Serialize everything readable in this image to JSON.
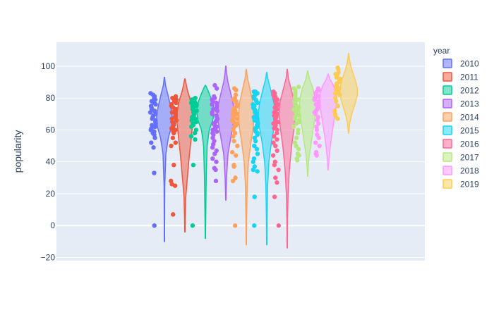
{
  "chart_data": {
    "type": "violin",
    "title": "",
    "xlabel": "",
    "ylabel": "popularity",
    "ylim": [
      -22,
      115
    ],
    "yticks": [
      -20,
      0,
      20,
      40,
      60,
      80,
      100
    ],
    "grid": true,
    "show_points": true,
    "legend": {
      "title": "year",
      "placement": "right"
    },
    "series": [
      {
        "name": "2010",
        "color": "#636efa",
        "range": [
          -10,
          93
        ],
        "density": [
          [
            -10,
            0.01
          ],
          [
            0,
            0.01
          ],
          [
            25,
            0.02
          ],
          [
            45,
            0.08
          ],
          [
            55,
            0.22
          ],
          [
            62,
            0.4
          ],
          [
            68,
            0.45
          ],
          [
            75,
            0.35
          ],
          [
            82,
            0.2
          ],
          [
            88,
            0.06
          ],
          [
            93,
            0.01
          ]
        ],
        "points": [
          83,
          82,
          81,
          80,
          79,
          78,
          78,
          77,
          76,
          75,
          74,
          73,
          72,
          71,
          70,
          69,
          68,
          67,
          66,
          65,
          64,
          63,
          62,
          61,
          60,
          59,
          58,
          57,
          55,
          52,
          49,
          33,
          0
        ]
      },
      {
        "name": "2011",
        "color": "#EF553B",
        "range": [
          -4,
          92
        ],
        "density": [
          [
            -4,
            0.01
          ],
          [
            5,
            0.02
          ],
          [
            18,
            0.05
          ],
          [
            30,
            0.14
          ],
          [
            45,
            0.26
          ],
          [
            55,
            0.36
          ],
          [
            65,
            0.45
          ],
          [
            72,
            0.43
          ],
          [
            78,
            0.33
          ],
          [
            85,
            0.14
          ],
          [
            92,
            0.01
          ]
        ],
        "points": [
          81,
          80,
          79,
          78,
          77,
          76,
          75,
          74,
          73,
          72,
          71,
          70,
          69,
          68,
          67,
          66,
          65,
          64,
          63,
          62,
          61,
          60,
          59,
          58,
          55,
          52,
          50,
          38,
          28,
          26,
          25,
          7
        ]
      },
      {
        "name": "2012",
        "color": "#00cc96",
        "range": [
          -8,
          88
        ],
        "density": [
          [
            -8,
            0.01
          ],
          [
            5,
            0.02
          ],
          [
            30,
            0.05
          ],
          [
            50,
            0.1
          ],
          [
            60,
            0.22
          ],
          [
            66,
            0.42
          ],
          [
            72,
            0.5
          ],
          [
            77,
            0.42
          ],
          [
            82,
            0.25
          ],
          [
            86,
            0.1
          ],
          [
            88,
            0.01
          ]
        ],
        "points": [
          80,
          79,
          79,
          78,
          77,
          77,
          76,
          75,
          75,
          74,
          73,
          73,
          72,
          71,
          70,
          69,
          68,
          67,
          66,
          65,
          64,
          63,
          62,
          60,
          58,
          56,
          54,
          38,
          0
        ]
      },
      {
        "name": "2013",
        "color": "#ab63fa",
        "range": [
          16,
          100
        ],
        "density": [
          [
            16,
            0.01
          ],
          [
            30,
            0.04
          ],
          [
            45,
            0.12
          ],
          [
            55,
            0.28
          ],
          [
            64,
            0.42
          ],
          [
            70,
            0.48
          ],
          [
            76,
            0.42
          ],
          [
            82,
            0.3
          ],
          [
            90,
            0.12
          ],
          [
            96,
            0.04
          ],
          [
            100,
            0.01
          ]
        ],
        "points": [
          88,
          86,
          81,
          80,
          79,
          78,
          77,
          76,
          75,
          74,
          73,
          72,
          71,
          70,
          69,
          68,
          67,
          66,
          65,
          64,
          63,
          62,
          61,
          60,
          59,
          58,
          57,
          55,
          53,
          51,
          49,
          47,
          45,
          42,
          40,
          36,
          35,
          28
        ]
      },
      {
        "name": "2014",
        "color": "#FFA15A",
        "range": [
          -12,
          98
        ],
        "density": [
          [
            -12,
            0.01
          ],
          [
            5,
            0.02
          ],
          [
            25,
            0.05
          ],
          [
            40,
            0.12
          ],
          [
            52,
            0.26
          ],
          [
            62,
            0.4
          ],
          [
            70,
            0.44
          ],
          [
            77,
            0.38
          ],
          [
            85,
            0.22
          ],
          [
            93,
            0.06
          ],
          [
            98,
            0.01
          ]
        ],
        "points": [
          86,
          85,
          82,
          80,
          79,
          78,
          77,
          76,
          75,
          74,
          73,
          72,
          71,
          70,
          69,
          68,
          67,
          66,
          65,
          64,
          63,
          62,
          60,
          58,
          56,
          53,
          50,
          46,
          44,
          38,
          37,
          30,
          28,
          0
        ]
      },
      {
        "name": "2015",
        "color": "#19d3f3",
        "range": [
          -12,
          96
        ],
        "density": [
          [
            -12,
            0.01
          ],
          [
            5,
            0.02
          ],
          [
            25,
            0.05
          ],
          [
            40,
            0.12
          ],
          [
            52,
            0.26
          ],
          [
            62,
            0.42
          ],
          [
            70,
            0.48
          ],
          [
            76,
            0.42
          ],
          [
            84,
            0.25
          ],
          [
            92,
            0.06
          ],
          [
            96,
            0.01
          ]
        ],
        "points": [
          84,
          84,
          83,
          82,
          81,
          80,
          79,
          78,
          77,
          76,
          75,
          74,
          73,
          72,
          71,
          70,
          69,
          68,
          67,
          66,
          65,
          64,
          63,
          62,
          61,
          60,
          59,
          58,
          57,
          55,
          53,
          50,
          48,
          45,
          42,
          40,
          37,
          35,
          34,
          18,
          0
        ]
      },
      {
        "name": "2016",
        "color": "#FF6692",
        "range": [
          -14,
          98
        ],
        "density": [
          [
            -14,
            0.01
          ],
          [
            5,
            0.02
          ],
          [
            20,
            0.05
          ],
          [
            35,
            0.12
          ],
          [
            50,
            0.25
          ],
          [
            62,
            0.4
          ],
          [
            70,
            0.47
          ],
          [
            77,
            0.42
          ],
          [
            84,
            0.26
          ],
          [
            92,
            0.07
          ],
          [
            98,
            0.01
          ]
        ],
        "points": [
          84,
          83,
          82,
          81,
          80,
          79,
          78,
          77,
          76,
          75,
          74,
          73,
          72,
          71,
          70,
          69,
          68,
          67,
          66,
          65,
          64,
          63,
          62,
          61,
          60,
          58,
          56,
          54,
          52,
          50,
          47,
          44,
          40,
          38,
          35,
          30,
          27,
          18,
          0
        ]
      },
      {
        "name": "2017",
        "color": "#B6E880",
        "range": [
          31,
          97
        ],
        "density": [
          [
            31,
            0.01
          ],
          [
            38,
            0.04
          ],
          [
            45,
            0.1
          ],
          [
            52,
            0.2
          ],
          [
            60,
            0.3
          ],
          [
            68,
            0.42
          ],
          [
            74,
            0.48
          ],
          [
            80,
            0.44
          ],
          [
            86,
            0.3
          ],
          [
            92,
            0.1
          ],
          [
            97,
            0.01
          ]
        ],
        "points": [
          87,
          86,
          85,
          84,
          83,
          82,
          81,
          80,
          79,
          78,
          77,
          76,
          75,
          74,
          73,
          72,
          71,
          70,
          69,
          68,
          67,
          66,
          65,
          64,
          62,
          60,
          58,
          55,
          52,
          50,
          48,
          45,
          44,
          42,
          41
        ]
      },
      {
        "name": "2018",
        "color": "#FF97FF",
        "range": [
          35,
          95
        ],
        "density": [
          [
            35,
            0.01
          ],
          [
            42,
            0.05
          ],
          [
            50,
            0.12
          ],
          [
            58,
            0.22
          ],
          [
            65,
            0.32
          ],
          [
            72,
            0.42
          ],
          [
            78,
            0.5
          ],
          [
            83,
            0.46
          ],
          [
            88,
            0.3
          ],
          [
            92,
            0.1
          ],
          [
            95,
            0.01
          ]
        ],
        "points": [
          86,
          85,
          84,
          83,
          82,
          81,
          80,
          79,
          78,
          77,
          76,
          75,
          74,
          73,
          72,
          71,
          70,
          68,
          66,
          64,
          62,
          60,
          57,
          55,
          52,
          50,
          46,
          45,
          44
        ]
      },
      {
        "name": "2019",
        "color": "#FECB52",
        "range": [
          58,
          108
        ],
        "density": [
          [
            58,
            0.01
          ],
          [
            64,
            0.06
          ],
          [
            70,
            0.18
          ],
          [
            76,
            0.35
          ],
          [
            82,
            0.5
          ],
          [
            87,
            0.48
          ],
          [
            92,
            0.36
          ],
          [
            97,
            0.2
          ],
          [
            102,
            0.08
          ],
          [
            106,
            0.02
          ],
          [
            108,
            0.01
          ]
        ],
        "points": [
          99,
          98,
          96,
          95,
          94,
          93,
          92,
          91,
          90,
          89,
          88,
          87,
          86,
          85,
          85,
          84,
          83,
          82,
          80,
          78,
          75,
          72,
          70,
          69,
          67
        ]
      }
    ]
  }
}
